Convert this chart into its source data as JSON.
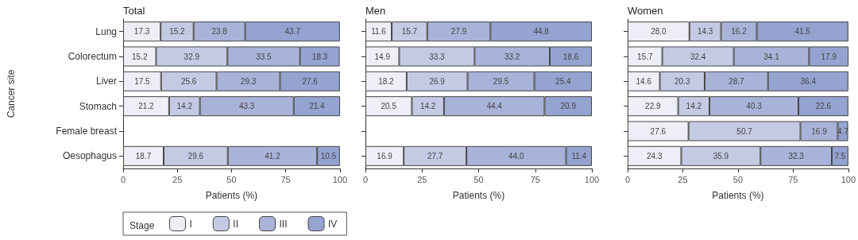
{
  "chart_data": [
    {
      "type": "bar",
      "orientation": "horizontal",
      "stacked": true,
      "title": "Total",
      "xlabel": "Patients (%)",
      "ylabel": "Cancer site",
      "legend_title": "Stage",
      "legend": "bottom",
      "categories": [
        "Lung",
        "Colorectum",
        "Liver",
        "Stomach",
        "Female breast",
        "Oesophagus"
      ],
      "xlim": [
        0,
        100
      ],
      "xticks": [
        0,
        25,
        50,
        75,
        100
      ],
      "series": [
        {
          "name": "I",
          "color": "#eeeff6",
          "values": [
            17.3,
            15.2,
            17.5,
            21.2,
            null,
            18.7
          ],
          "value_labels": [
            "17.3",
            "15.2",
            "17.5",
            "21.2",
            null,
            "18.7"
          ]
        },
        {
          "name": "II",
          "color": "#c5cae4",
          "values": [
            15.2,
            32.9,
            25.6,
            14.2,
            null,
            29.6
          ],
          "value_labels": [
            "15.2",
            "32.9",
            "25.6",
            "14.2",
            null,
            "29.6"
          ]
        },
        {
          "name": "III",
          "color": "#a9b3d9",
          "values": [
            23.8,
            33.5,
            29.3,
            43.3,
            null,
            41.2
          ],
          "value_labels": [
            "23.8",
            "33.5",
            "29.3",
            "43.3",
            null,
            "41.2"
          ]
        },
        {
          "name": "IV",
          "color": "#95a3d1",
          "values": [
            43.7,
            18.3,
            27.6,
            21.4,
            null,
            10.5
          ],
          "value_labels": [
            "43.7",
            "18.3",
            "27.6",
            "21.4",
            null,
            "10.5"
          ]
        }
      ]
    },
    {
      "type": "bar",
      "orientation": "horizontal",
      "stacked": true,
      "title": "Men",
      "xlabel": "Patients (%)",
      "legend": false,
      "tick_labels": "x",
      "categories": [
        null,
        null,
        null,
        null,
        null,
        null
      ],
      "xlim": [
        0,
        100
      ],
      "xticks": [
        0,
        25,
        50,
        75,
        100
      ],
      "series": [
        {
          "color": "#eeeff6",
          "values": [
            11.6,
            14.9,
            18.2,
            20.5,
            null,
            16.9
          ],
          "value_labels": [
            "11.6",
            "14.9",
            "18.2",
            "20.5",
            null,
            "16.9"
          ]
        },
        {
          "color": "#c5cae4",
          "values": [
            15.7,
            33.3,
            26.9,
            14.2,
            null,
            27.7
          ],
          "value_labels": [
            "15.7",
            "33.3",
            "26.9",
            "14.2",
            null,
            "27.7"
          ]
        },
        {
          "color": "#a9b3d9",
          "values": [
            27.9,
            33.2,
            29.5,
            44.4,
            null,
            44.0
          ],
          "value_labels": [
            "27.9",
            "33.2",
            "29.5",
            "44.4",
            null,
            "44.0"
          ]
        },
        {
          "color": "#95a3d1",
          "values": [
            44.8,
            18.6,
            25.4,
            20.9,
            null,
            11.4
          ],
          "value_labels": [
            "44.8",
            "18.6",
            "25.4",
            "20.9",
            null,
            "11.4"
          ]
        }
      ]
    },
    {
      "type": "bar",
      "orientation": "horizontal",
      "stacked": true,
      "title": "Women",
      "xlabel": "Patients (%)",
      "legend": false,
      "tick_labels": "x",
      "categories": [
        null,
        null,
        null,
        null,
        null,
        null
      ],
      "xlim": [
        0,
        100
      ],
      "xticks": [
        0,
        25,
        50,
        75,
        100
      ],
      "series": [
        {
          "color": "#eeeff6",
          "values": [
            28.0,
            15.7,
            14.6,
            22.9,
            27.6,
            24.3
          ],
          "value_labels": [
            "28.0",
            "15.7",
            "14.6",
            "22.9",
            "27.6",
            "24.3"
          ]
        },
        {
          "color": "#c5cae4",
          "values": [
            14.3,
            32.4,
            20.3,
            14.2,
            50.7,
            35.9
          ],
          "value_labels": [
            "14.3",
            "32.4",
            "20.3",
            "14.2",
            "50.7",
            "35.9"
          ]
        },
        {
          "color": "#a9b3d9",
          "values": [
            16.2,
            34.1,
            28.7,
            40.3,
            16.9,
            32.3
          ],
          "value_labels": [
            "16.2",
            "34.1",
            "28.7",
            "40.3",
            "16.9",
            "32.3"
          ]
        },
        {
          "color": "#95a3d1",
          "values": [
            41.5,
            17.9,
            36.4,
            22.6,
            4.7,
            7.5
          ],
          "value_labels": [
            "41.5",
            "17.9",
            "36.4",
            "22.6",
            "4.7",
            "7.5"
          ]
        }
      ]
    }
  ]
}
